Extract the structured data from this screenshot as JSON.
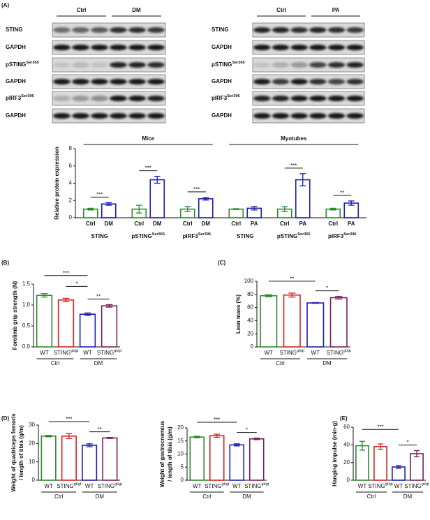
{
  "blots": [
    {
      "headers": [
        "Ctrl",
        "DM"
      ],
      "rows": [
        {
          "name": "STING"
        },
        {
          "name": "GAPDH"
        },
        {
          "name": "pSTING",
          "sup": "Ser365"
        },
        {
          "name": "GAPDH"
        },
        {
          "name": "pIRF3",
          "sup": "Ser396"
        },
        {
          "name": "GAPDH"
        }
      ]
    },
    {
      "headers": [
        "Ctrl",
        "PA"
      ],
      "rows": [
        {
          "name": "STING"
        },
        {
          "name": "GAPDH"
        },
        {
          "name": "pSTING",
          "sup": "Ser365"
        },
        {
          "name": "GAPDH"
        },
        {
          "name": "pIRF3",
          "sup": "Ser396"
        },
        {
          "name": "GAPDH"
        }
      ]
    }
  ],
  "chart_data": [
    {
      "type": "bar",
      "panel": "(A)",
      "ylabel": [
        "Relative protein expression"
      ],
      "ylim": [
        0,
        8
      ],
      "yticks": [
        0,
        2,
        4,
        6,
        8
      ],
      "categories": [
        "Ctrl",
        "DM",
        "Ctrl",
        "DM",
        "Ctrl",
        "DM",
        "Ctrl",
        "PA",
        "Ctrl",
        "PA",
        "Ctrl",
        "PA"
      ],
      "colors": [
        "#2b8a2b",
        "#1c1cb0",
        "#2b8a2b",
        "#1c1cb0",
        "#2b8a2b",
        "#1c1cb0",
        "#2b8a2b",
        "#1c1cb0",
        "#2b8a2b",
        "#1c1cb0",
        "#2b8a2b",
        "#1c1cb0"
      ],
      "values": [
        1.0,
        1.6,
        1.0,
        4.4,
        1.0,
        2.2,
        1.0,
        1.1,
        1.0,
        4.4,
        1.0,
        1.7
      ],
      "errors": [
        0.1,
        0.15,
        0.45,
        0.4,
        0.3,
        0.15,
        0.05,
        0.2,
        0.3,
        0.7,
        0.1,
        0.25
      ],
      "groups": [
        {
          "name": "STING"
        },
        {
          "name": "pSTING",
          "sup": "Ser365"
        },
        {
          "name": "pIRF3",
          "sup": "Ser396"
        },
        {
          "name": "STING"
        },
        {
          "name": "pSTING",
          "sup": "Ser365"
        },
        {
          "name": "pIRF3",
          "sup": "Ser396"
        }
      ],
      "headers": [
        "Mice",
        "Myotubes"
      ],
      "significance": [
        {
          "from": 0,
          "to": 1,
          "label": "***"
        },
        {
          "from": 2,
          "to": 3,
          "label": "***"
        },
        {
          "from": 4,
          "to": 5,
          "label": "***"
        },
        {
          "from": 8,
          "to": 9,
          "label": "***"
        },
        {
          "from": 10,
          "to": 11,
          "label": "**"
        }
      ]
    },
    {
      "type": "bar",
      "panel": "(B)",
      "ylabel": [
        "Forelimb grip strength (N)"
      ],
      "ylim": [
        0,
        1.5
      ],
      "yticks": [
        {
          "value": 0,
          "label": "0.0"
        },
        0.5,
        {
          "value": 1,
          "label": "1.0"
        },
        1.5
      ],
      "categories": [
        "WT",
        "STING",
        "WT",
        "STING"
      ],
      "category_sups": [
        null,
        "gt/gt",
        null,
        "gt/gt"
      ],
      "colors": [
        "#2b8a2b",
        "#d42020",
        "#1c1cb0",
        "#7a1f5c"
      ],
      "values": [
        1.23,
        1.12,
        0.78,
        0.98
      ],
      "errors": [
        0.04,
        0.04,
        0.03,
        0.03
      ],
      "groups": [
        {
          "name": "Ctrl"
        },
        {
          "name": "DM"
        }
      ],
      "significance": [
        {
          "from": 2,
          "to": 3,
          "label": "**"
        },
        {
          "from": 1,
          "to": 2,
          "label": "*"
        },
        {
          "from": 0,
          "to": 2,
          "label": "***"
        }
      ]
    },
    {
      "type": "bar",
      "panel": "(C)",
      "ylabel": [
        "Lean mass (%)"
      ],
      "ylim": [
        0,
        100
      ],
      "yticks": [
        0,
        20,
        40,
        60,
        80,
        100
      ],
      "categories": [
        "WT",
        "STING",
        "WT",
        "STING"
      ],
      "category_sups": [
        null,
        "gt/gt",
        null,
        "gt/gt"
      ],
      "colors": [
        "#2b8a2b",
        "#d42020",
        "#1c1cb0",
        "#7a1f5c"
      ],
      "values": [
        78,
        79,
        67,
        75
      ],
      "errors": [
        1.5,
        3,
        0.5,
        2
      ],
      "groups": [
        {
          "name": "Ctrl"
        },
        {
          "name": "DM"
        }
      ],
      "significance": [
        {
          "from": 2,
          "to": 3,
          "label": "*"
        },
        {
          "from": 0,
          "to": 2,
          "label": "**"
        }
      ]
    },
    {
      "type": "bar",
      "panel": "(D)",
      "ylabel": [
        "Weight of quadriceps femoris",
        "/ length of tibia (g/m)"
      ],
      "ylim": [
        0,
        30
      ],
      "yticks": [
        0,
        10,
        20,
        30
      ],
      "categories": [
        "WT",
        "STING",
        "WT",
        "STING"
      ],
      "category_sups": [
        null,
        "gt/gt",
        null,
        "gt/gt"
      ],
      "colors": [
        "#2b8a2b",
        "#d42020",
        "#1c1cb0",
        "#7a1f5c"
      ],
      "values": [
        24,
        24,
        19,
        23
      ],
      "errors": [
        0.4,
        1.4,
        0.8,
        0.3
      ],
      "groups": [
        {
          "name": "Ctrl"
        },
        {
          "name": "DM"
        }
      ],
      "significance": [
        {
          "from": 2,
          "to": 3,
          "label": "**"
        },
        {
          "from": 0,
          "to": 2,
          "label": "***"
        }
      ]
    },
    {
      "type": "bar",
      "ylabel": [
        "Weight of gastrocnemius",
        "/ length of tibia (g/m)"
      ],
      "ylim": [
        0,
        20
      ],
      "yticks": [
        0,
        5,
        10,
        15,
        20
      ],
      "categories": [
        "WT",
        "STING",
        "WT",
        "STING"
      ],
      "category_sups": [
        null,
        "gt/gt",
        null,
        "gt/gt"
      ],
      "colors": [
        "#2b8a2b",
        "#d42020",
        "#1c1cb0",
        "#7a1f5c"
      ],
      "values": [
        16.5,
        17,
        13.5,
        15.8
      ],
      "errors": [
        0.3,
        0.6,
        0.4,
        0.3
      ],
      "groups": [
        {
          "name": "Ctrl"
        },
        {
          "name": "DM"
        }
      ],
      "significance": [
        {
          "from": 2,
          "to": 3,
          "label": "*"
        },
        {
          "from": 0,
          "to": 2,
          "label": "***"
        }
      ]
    },
    {
      "type": "bar",
      "panel": "(E)",
      "ylabel": [
        "Hanging impulse (min·g)"
      ],
      "ylim": [
        0,
        60
      ],
      "yticks": [
        0,
        20,
        40,
        60
      ],
      "categories": [
        "WT",
        "STING",
        "WT",
        "STING"
      ],
      "category_sups": [
        null,
        "gt/gt",
        null,
        "gt/gt"
      ],
      "colors": [
        "#2b8a2b",
        "#d42020",
        "#1c1cb0",
        "#7a1f5c"
      ],
      "values": [
        39,
        38,
        15,
        30
      ],
      "errors": [
        5,
        3,
        1.5,
        3.5
      ],
      "groups": [
        {
          "name": "Ctrl"
        },
        {
          "name": "DM"
        }
      ],
      "significance": [
        {
          "from": 2,
          "to": 3,
          "label": "*"
        },
        {
          "from": 0,
          "to": 2,
          "label": "***"
        }
      ]
    }
  ]
}
